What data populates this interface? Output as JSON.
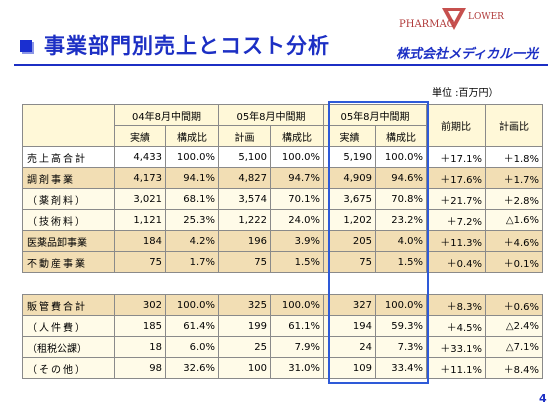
{
  "header": {
    "title": "事業部門別売上とコスト分析",
    "logo_top": "PHARMAC",
    "logo_side": "LOWER",
    "company": "株式会社メディカル一光"
  },
  "unit_label": "単位 :百万円）",
  "columns": {
    "groups": [
      "04年8月中間期",
      "05年8月中間期",
      "05年8月中間期"
    ],
    "subs": [
      "実績",
      "構成比",
      "計画",
      "構成比",
      "実績",
      "構成比"
    ],
    "vs_prev": "前期比",
    "vs_plan": "計画比"
  },
  "rows": [
    {
      "label": "売上高合計",
      "c1": "4,433",
      "c2": "100.0%",
      "c3": "5,100",
      "c4": "100.0%",
      "c5": "5,190",
      "c6": "100.0%",
      "c7": "＋17.1%",
      "c8": "＋1.8%"
    },
    {
      "label": "調剤事業",
      "c1": "4,173",
      "c2": "94.1%",
      "c3": "4,827",
      "c4": "94.7%",
      "c5": "4,909",
      "c6": "94.6%",
      "c7": "＋17.6%",
      "c8": "＋1.7%"
    },
    {
      "label": "（薬剤料）",
      "c1": "3,021",
      "c2": "68.1%",
      "c3": "3,574",
      "c4": "70.1%",
      "c5": "3,675",
      "c6": "70.8%",
      "c7": "＋21.7%",
      "c8": "＋2.8%"
    },
    {
      "label": "（技術料）",
      "c1": "1,121",
      "c2": "25.3%",
      "c3": "1,222",
      "c4": "24.0%",
      "c5": "1,202",
      "c6": "23.2%",
      "c7": "＋7.2%",
      "c8": "△1.6%"
    },
    {
      "label": "医薬品卸事業",
      "c1": "184",
      "c2": "4.2%",
      "c3": "196",
      "c4": "3.9%",
      "c5": "205",
      "c6": "4.0%",
      "c7": "＋11.3%",
      "c8": "＋4.6%"
    },
    {
      "label": "不動産事業",
      "c1": "75",
      "c2": "1.7%",
      "c3": "75",
      "c4": "1.5%",
      "c5": "75",
      "c6": "1.5%",
      "c7": "＋0.4%",
      "c8": "＋0.1%"
    }
  ],
  "rows2": [
    {
      "label": "販管費合計",
      "c1": "302",
      "c2": "100.0%",
      "c3": "325",
      "c4": "100.0%",
      "c5": "327",
      "c6": "100.0%",
      "c7": "＋8.3%",
      "c8": "＋0.6%"
    },
    {
      "label": "（人件費）",
      "c1": "185",
      "c2": "61.4%",
      "c3": "199",
      "c4": "61.1%",
      "c5": "194",
      "c6": "59.3%",
      "c7": "＋4.5%",
      "c8": "△2.4%"
    },
    {
      "label": "（租税公課）",
      "c1": "18",
      "c2": "6.0%",
      "c3": "25",
      "c4": "7.9%",
      "c5": "24",
      "c6": "7.3%",
      "c7": "＋33.1%",
      "c8": "△7.1%"
    },
    {
      "label": "（その他）",
      "c1": "98",
      "c2": "32.6%",
      "c3": "100",
      "c4": "31.0%",
      "c5": "109",
      "c6": "33.4%",
      "c7": "＋11.1%",
      "c8": "＋8.4%"
    }
  ],
  "page_number": "4",
  "colors": {
    "title": "#1c2fc4",
    "highlight_border": "#2e5ad8",
    "tan_row": "#f2deb4",
    "header_bg": "#fff8d8"
  }
}
